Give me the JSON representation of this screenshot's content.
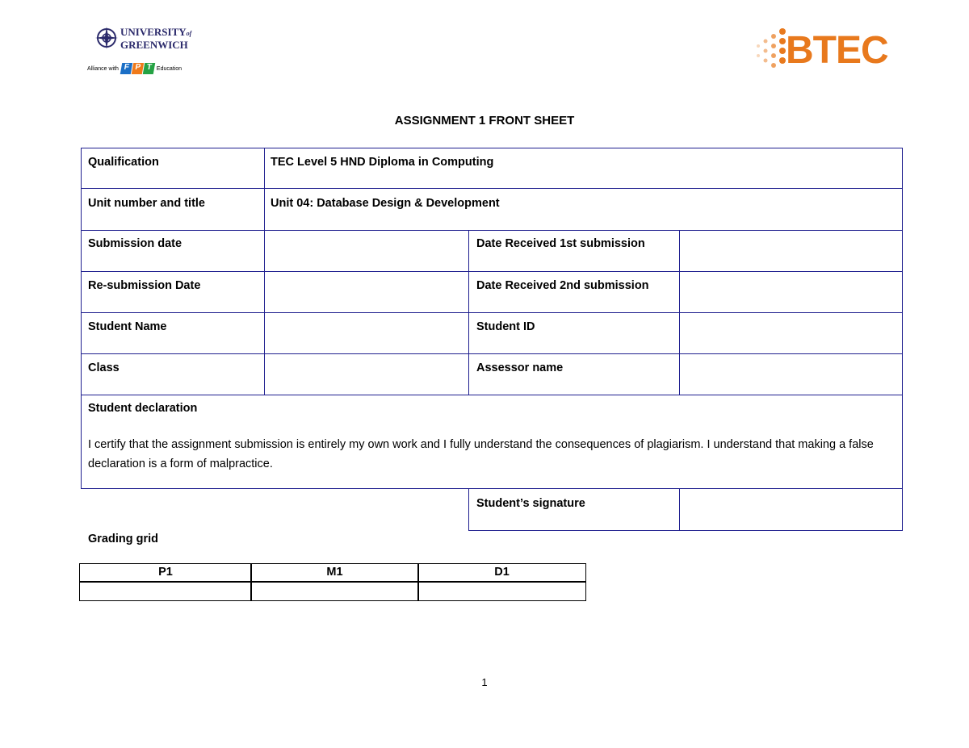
{
  "logos": {
    "university": {
      "line1": "UNIVERSITY",
      "of": "of",
      "line2": "GREENWICH",
      "alliance": "Alliance with",
      "fpt": [
        "F",
        "P",
        "T"
      ],
      "education": "Education",
      "color": "#2b2a6b"
    },
    "btec": {
      "text": "BTEC",
      "color": "#e8791d"
    }
  },
  "title": "ASSIGNMENT 1 FRONT SHEET",
  "form": {
    "qualification_label": "Qualification",
    "qualification_value": "TEC Level 5 HND Diploma in Computing",
    "unit_label": "Unit number and title",
    "unit_value": "Unit 04: Database Design & Development",
    "submission_date_label": "Submission date",
    "submission_date_value": "",
    "date_received_1_label": "Date Received 1st submission",
    "date_received_1_value": "",
    "resubmission_date_label": "Re-submission Date",
    "resubmission_date_value": "",
    "date_received_2_label": "Date Received 2nd submission",
    "date_received_2_value": "",
    "student_name_label": "Student Name",
    "student_name_value": "",
    "student_id_label": "Student ID",
    "student_id_value": "",
    "class_label": "Class",
    "class_value": "",
    "assessor_label": "Assessor name",
    "assessor_value": "",
    "declaration_title": "Student declaration",
    "declaration_text": "I certify that the assignment submission is entirely my own work and I fully understand the consequences of plagiarism. I understand that making a false declaration is a form of malpractice.",
    "signature_label": "Student’s signature",
    "signature_value": ""
  },
  "grading": {
    "title": "Grading grid",
    "headers": [
      "P1",
      "M1",
      "D1"
    ],
    "values": [
      "",
      "",
      ""
    ]
  },
  "page_number": "1",
  "colors": {
    "table_border": "#1f1f8f"
  }
}
